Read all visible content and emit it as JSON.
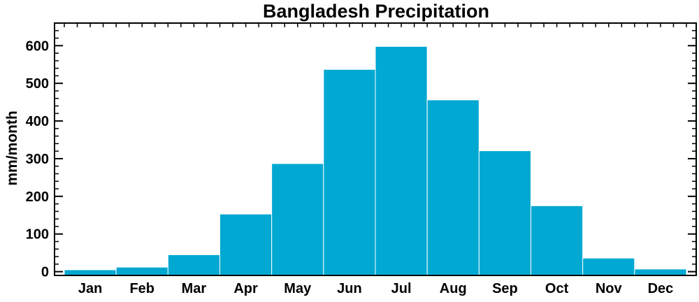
{
  "chart_data": {
    "type": "bar",
    "title": "Bangladesh Precipitation",
    "xlabel": "",
    "ylabel": "mm/month",
    "categories": [
      "Jan",
      "Feb",
      "Mar",
      "Apr",
      "May",
      "Jun",
      "Jul",
      "Aug",
      "Sep",
      "Oct",
      "Nov",
      "Dec"
    ],
    "values": [
      5,
      12,
      45,
      153,
      287,
      537,
      598,
      456,
      321,
      175,
      36,
      7
    ],
    "ylim": [
      -10,
      660
    ],
    "yticks": [
      0,
      100,
      200,
      300,
      400,
      500,
      600
    ],
    "bar_color": "#00a8d2",
    "grid": false,
    "legend": "none"
  }
}
